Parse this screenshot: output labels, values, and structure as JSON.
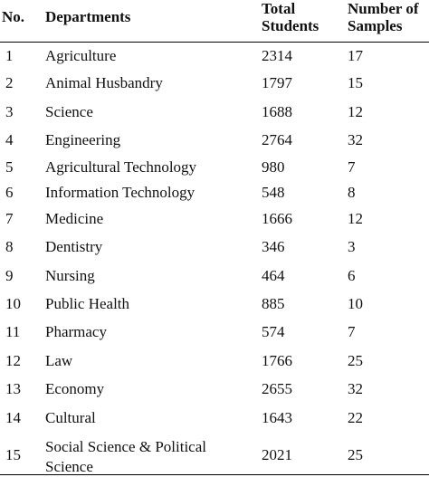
{
  "table": {
    "headers": {
      "no": "No.",
      "departments": "Departments",
      "total_students": "Total\nStudents",
      "number_of_samples": "Number of\nSamples"
    },
    "rows": [
      {
        "no": "1",
        "department": "Agriculture",
        "total_students": "2314",
        "samples": "17"
      },
      {
        "no": "2",
        "department": "Animal Husbandry",
        "total_students": "1797",
        "samples": "15"
      },
      {
        "no": "3",
        "department": "Science",
        "total_students": "1688",
        "samples": "12"
      },
      {
        "no": "4",
        "department": "Engineering",
        "total_students": "2764",
        "samples": "32"
      },
      {
        "no": "5",
        "department": "Agricultural Technology",
        "total_students": "980",
        "samples": "7"
      },
      {
        "no": "6",
        "department": "Information Technology",
        "total_students": "548",
        "samples": "8"
      },
      {
        "no": "7",
        "department": "Medicine",
        "total_students": "1666",
        "samples": "12"
      },
      {
        "no": "8",
        "department": "Dentistry",
        "total_students": "346",
        "samples": "3"
      },
      {
        "no": "9",
        "department": "Nursing",
        "total_students": "464",
        "samples": "6"
      },
      {
        "no": "10",
        "department": "Public Health",
        "total_students": "885",
        "samples": "10"
      },
      {
        "no": "11",
        "department": "Pharmacy",
        "total_students": "574",
        "samples": "7"
      },
      {
        "no": "12",
        "department": "Law",
        "total_students": "1766",
        "samples": "25"
      },
      {
        "no": "13",
        "department": "Economy",
        "total_students": "2655",
        "samples": "32"
      },
      {
        "no": "14",
        "department": "Cultural",
        "total_students": "1643",
        "samples": "22"
      },
      {
        "no": "15",
        "department": "Social Science & Political\nScience",
        "total_students": "2021",
        "samples": "25"
      }
    ]
  }
}
